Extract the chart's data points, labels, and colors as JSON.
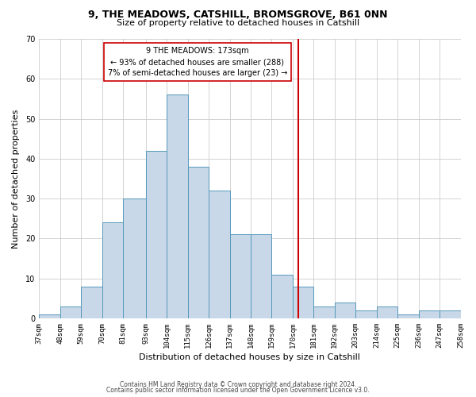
{
  "title": "9, THE MEADOWS, CATSHILL, BROMSGROVE, B61 0NN",
  "subtitle": "Size of property relative to detached houses in Catshill",
  "xlabel": "Distribution of detached houses by size in Catshill",
  "ylabel": "Number of detached properties",
  "bin_edges": [
    37,
    48,
    59,
    70,
    81,
    93,
    104,
    115,
    126,
    137,
    148,
    159,
    170,
    181,
    192,
    203,
    214,
    225,
    236,
    247,
    258
  ],
  "counts": [
    1,
    3,
    8,
    24,
    30,
    42,
    56,
    38,
    32,
    21,
    21,
    11,
    8,
    3,
    4,
    2,
    3,
    1,
    2,
    2
  ],
  "bar_color": "#c8d8e8",
  "bar_edge_color": "#5599bb",
  "property_size": 173,
  "vline_color": "#cc0000",
  "annotation_line1": "9 THE MEADOWS: 173sqm",
  "annotation_line2": "← 93% of detached houses are smaller (288)",
  "annotation_line3": "7% of semi-detached houses are larger (23) →",
  "annotation_box_color": "#ffffff",
  "annotation_box_edge": "#cc0000",
  "ylim": [
    0,
    70
  ],
  "yticks": [
    0,
    10,
    20,
    30,
    40,
    50,
    60,
    70
  ],
  "tick_labels": [
    "37sqm",
    "48sqm",
    "59sqm",
    "70sqm",
    "81sqm",
    "93sqm",
    "104sqm",
    "115sqm",
    "126sqm",
    "137sqm",
    "148sqm",
    "159sqm",
    "170sqm",
    "181sqm",
    "192sqm",
    "203sqm",
    "214sqm",
    "225sqm",
    "236sqm",
    "247sqm",
    "258sqm"
  ],
  "footer1": "Contains HM Land Registry data © Crown copyright and database right 2024.",
  "footer2": "Contains public sector information licensed under the Open Government Licence v3.0.",
  "background_color": "#ffffff",
  "grid_color": "#cccccc",
  "title_fontsize": 9,
  "subtitle_fontsize": 8,
  "xlabel_fontsize": 8,
  "ylabel_fontsize": 8,
  "tick_fontsize": 6.5,
  "footer_fontsize": 5.5
}
